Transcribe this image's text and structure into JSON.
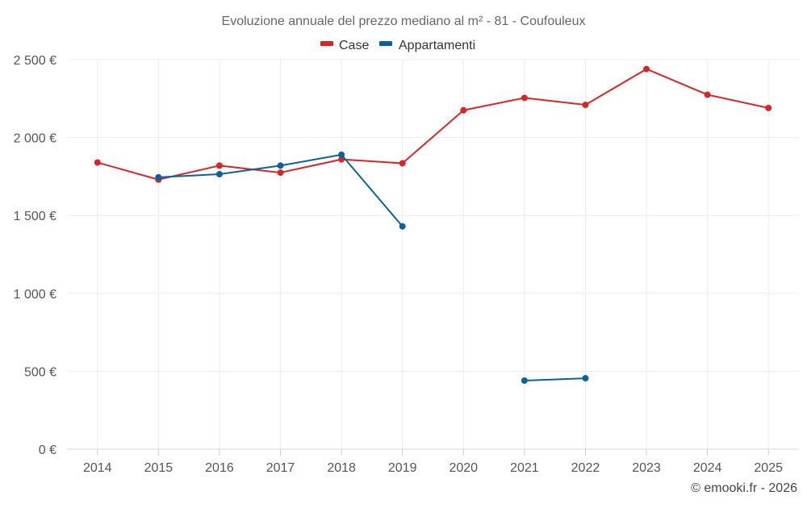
{
  "chart_data": {
    "type": "line",
    "title": "Evoluzione annuale del prezzo mediano al m² - 81 - Coufouleux",
    "xlabel": "",
    "ylabel": "",
    "categories": [
      "2014",
      "2015",
      "2016",
      "2017",
      "2018",
      "2019",
      "2020",
      "2021",
      "2022",
      "2023",
      "2024",
      "2025"
    ],
    "ylim": [
      0,
      2500
    ],
    "yticks": [
      0,
      500,
      1000,
      1500,
      2000,
      2500
    ],
    "ytick_labels": [
      "0 €",
      "500 €",
      "1 000 €",
      "1 500 €",
      "2 000 €",
      "2 500 €"
    ],
    "grid": true,
    "legend_position": "top-center",
    "series": [
      {
        "name": "Case",
        "color": "#d62728",
        "values": [
          1840,
          1730,
          1820,
          1775,
          1860,
          1835,
          2175,
          2255,
          2210,
          2440,
          2275,
          2190
        ]
      },
      {
        "name": "Appartamenti",
        "color": "#0e6198",
        "values": [
          null,
          1745,
          1765,
          1820,
          1890,
          1430,
          null,
          440,
          455,
          null,
          null,
          null
        ]
      }
    ],
    "credit": "© emooki.fr - 2026"
  }
}
